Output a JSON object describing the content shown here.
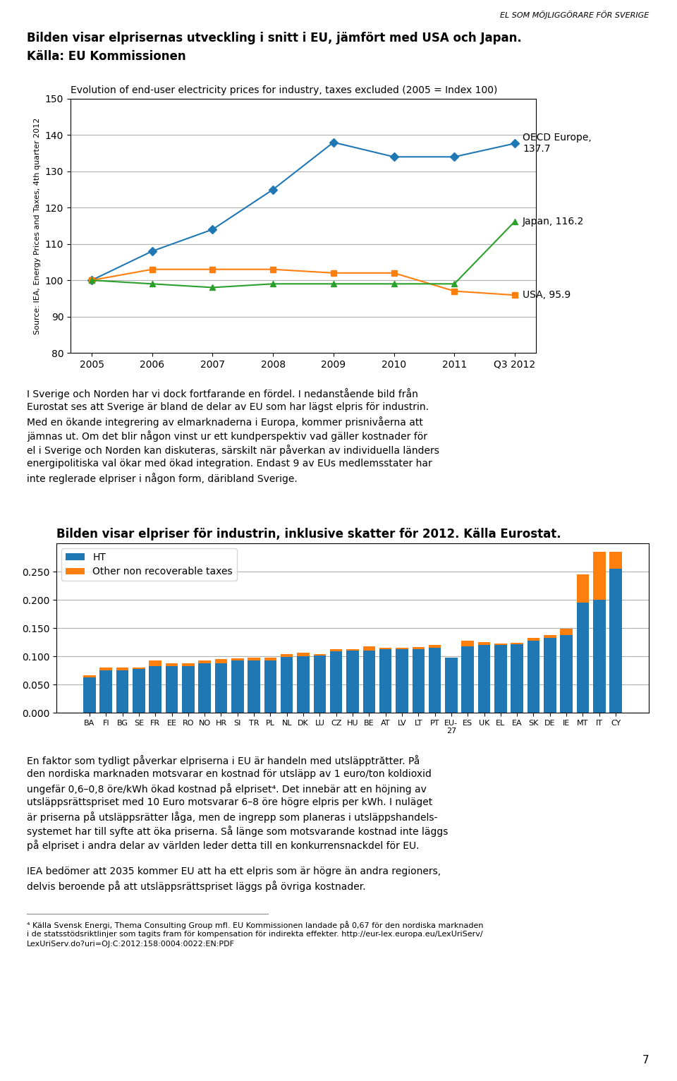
{
  "header": "EL SOM MÖJLIGGÖRARE FÖR SVERIGE",
  "headings": [
    "Bilden visar elprisernas utveckling i snitt i EU, jämfört med USA och Japan.",
    "Källa: EU Kommissionen"
  ],
  "chart_data": [
    {
      "type": "line",
      "title": "Evolution of end-user electricity prices for industry, taxes excluded (2005 = Index 100)",
      "ylabel": "Source: IEA, Energy Prices and Taxes, 4th quarter 2012",
      "categories": [
        "2005",
        "2006",
        "2007",
        "2008",
        "2009",
        "2010",
        "2011",
        "Q3 2012"
      ],
      "series": [
        {
          "values": [
            100,
            108,
            114,
            125,
            138,
            134,
            134,
            137.7
          ],
          "marker": "diamond"
        },
        {
          "values": [
            100,
            103,
            103,
            103,
            102,
            102,
            97,
            95.9
          ],
          "marker": "square"
        },
        {
          "values": [
            100,
            99,
            98,
            99,
            99,
            99,
            99,
            116.2
          ],
          "marker": "triangle"
        }
      ],
      "annotations": [
        {
          "text": "OECD Europe,\n137.7",
          "x": "Q3 2012",
          "y": 137.7
        },
        {
          "text": "Japan, 116.2",
          "x": "Q3 2012",
          "y": 116.2
        },
        {
          "text": "USA, 95.9",
          "x": "Q3 2012",
          "y": 95.9
        }
      ],
      "ylim": [
        80,
        150
      ],
      "yticks": [
        80,
        90,
        100,
        110,
        120,
        130,
        140,
        150
      ],
      "grid": true
    },
    {
      "type": "bar",
      "title": "Bilden visar elpriser för industrin, inklusive skatter för 2012. Källa Eurostat.",
      "categories": [
        "BA",
        "FI",
        "BG",
        "SE",
        "FR",
        "EE",
        "RO",
        "NO",
        "HR",
        "SI",
        "TR",
        "PL",
        "NL",
        "DK",
        "LU",
        "CZ",
        "HU",
        "BE",
        "AT",
        "LV",
        "LT",
        "PT",
        "EU-\n27",
        "ES",
        "UK",
        "EL",
        "EA",
        "SK",
        "DE",
        "IE",
        "MT",
        "IT",
        "CY"
      ],
      "series": [
        {
          "name": "HT",
          "values": [
            0.063,
            0.075,
            0.075,
            0.077,
            0.082,
            0.082,
            0.083,
            0.088,
            0.088,
            0.093,
            0.093,
            0.093,
            0.099,
            0.1,
            0.101,
            0.109,
            0.11,
            0.11,
            0.112,
            0.112,
            0.112,
            0.115,
            0.098,
            0.118,
            0.12,
            0.12,
            0.121,
            0.128,
            0.132,
            0.137,
            0.195,
            0.2,
            0.255
          ]
        },
        {
          "name": "Other non recoverable taxes",
          "values": [
            0.003,
            0.005,
            0.005,
            0.003,
            0.01,
            0.005,
            0.005,
            0.005,
            0.007,
            0.003,
            0.004,
            0.004,
            0.005,
            0.006,
            0.003,
            0.004,
            0.003,
            0.008,
            0.003,
            0.003,
            0.004,
            0.005,
            0.0,
            0.01,
            0.005,
            0.003,
            0.003,
            0.004,
            0.005,
            0.012,
            0.05,
            0.085,
            0.03
          ]
        }
      ],
      "stacked": true,
      "ylim": [
        0,
        0.3
      ],
      "yticks": [
        {
          "value": 0.0,
          "label": "0.000"
        },
        {
          "value": 0.05,
          "label": "0.050"
        },
        {
          "value": 0.1,
          "label": "0.100"
        },
        {
          "value": 0.15,
          "label": "0.150"
        },
        {
          "value": 0.2,
          "label": "0.200"
        },
        {
          "value": 0.25,
          "label": "0.250"
        }
      ],
      "grid": true,
      "legend": "upper left"
    }
  ],
  "text_1": [
    "I Sverige och Norden har vi dock fortfarande en fördel. I nedanstående bild från",
    "Eurostat ses att Sverige är bland de delar av EU som har lägst elpris för industrin.",
    "Med en ökande integrering av elmarknaderna i Europa, kommer prisnivåerna att",
    "jämnas ut. Om det blir någon vinst ur ett kundperspektiv vad gäller kostnader för",
    "el i Sverige och Norden kan diskuteras, särskilt när påverkan av individuella länders",
    "energipolitiska val ökar med ökad integration. Endast 9 av EUs medlemsstater har",
    "inte reglerade elpriser i någon form, däribland Sverige."
  ],
  "text_2": [
    "En faktor som tydligt påverkar elpriserna i EU är handeln med utsläpptrătter. På",
    "den nordiska marknaden motsvarar en kostnad för utsläpp av 1 euro/ton koldioxid",
    "ungefär 0,6–0,8 öre/kWh ökad kostnad på elpriset⁴. Det innebär att en höjning av",
    "utsläppsrättspriset med 10 Euro motsvarar 6–8 öre högre elpris per kWh. I nuläget",
    "är priserna på utsläppsrätter låga, men de ingrepp som planeras i utsläppshandels-",
    "systemet har till syfte att öka priserna. Så länge som motsvarande kostnad inte läggs",
    "på elpriset i andra delar av världen leder detta till en konkurrensnackdel för EU."
  ],
  "text_3": [
    "IEA bedömer att 2035 kommer EU att ha ett elpris som är högre än andra regioners,",
    "delvis beroende på att utsläppsrättspriset läggs på övriga kostnader."
  ],
  "footnote": [
    "⁴ Källa Svensk Energi, Thema Consulting Group mfl. EU Kommissionen landade på 0,67 för den nordiska marknaden",
    "i de statsstödsriktlinjer som tagits fram för kompensation för indirekta effekter. http://eur-lex.europa.eu/LexUriServ/",
    "LexUriServ.do?uri=OJ:C:2012:158:0004:0022:EN:PDF"
  ],
  "page_number": "7"
}
